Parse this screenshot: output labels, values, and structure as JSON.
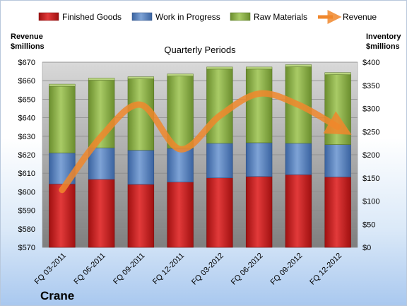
{
  "chart_data": {
    "type": "bar",
    "title": "Quarterly Periods",
    "company": "Crane",
    "y_left_label": [
      "Revenue",
      "$millions"
    ],
    "y_right_label": [
      "Inventory",
      "$millions"
    ],
    "y_left_range": [
      570,
      670
    ],
    "y_left_ticks": [
      "$570",
      "$580",
      "$590",
      "$600",
      "$610",
      "$620",
      "$630",
      "$640",
      "$650",
      "$660",
      "$670"
    ],
    "y_right_range": [
      0,
      400
    ],
    "y_right_ticks": [
      "$0",
      "$50",
      "$100",
      "$150",
      "$200",
      "$250",
      "$300",
      "$350",
      "$400"
    ],
    "grid": true,
    "legend_position": "top",
    "categories": [
      "FQ 03-2011",
      "FQ 06-2011",
      "FQ 09-2011",
      "FQ 12-2011",
      "FQ 03-2012",
      "FQ 06-2012",
      "FQ 09-2012",
      "FQ 12-2012"
    ],
    "stack_series": [
      {
        "name": "Finished Goods",
        "color": "#cc1f1f",
        "values": [
          137,
          147,
          136,
          141,
          150,
          153,
          157,
          152
        ]
      },
      {
        "name": "Work in Progress",
        "color": "#4f81bd",
        "values": [
          67,
          68,
          74,
          73,
          75,
          73,
          68,
          70
        ]
      },
      {
        "name": "Raw Materials",
        "color": "#8db048",
        "values": [
          144,
          146,
          154,
          156,
          160,
          159,
          165,
          151
        ]
      }
    ],
    "line_series": {
      "name": "Revenue",
      "color": "#f0872c",
      "axis": "left",
      "values": [
        601,
        630,
        647,
        623,
        641,
        653,
        647,
        635
      ]
    }
  }
}
